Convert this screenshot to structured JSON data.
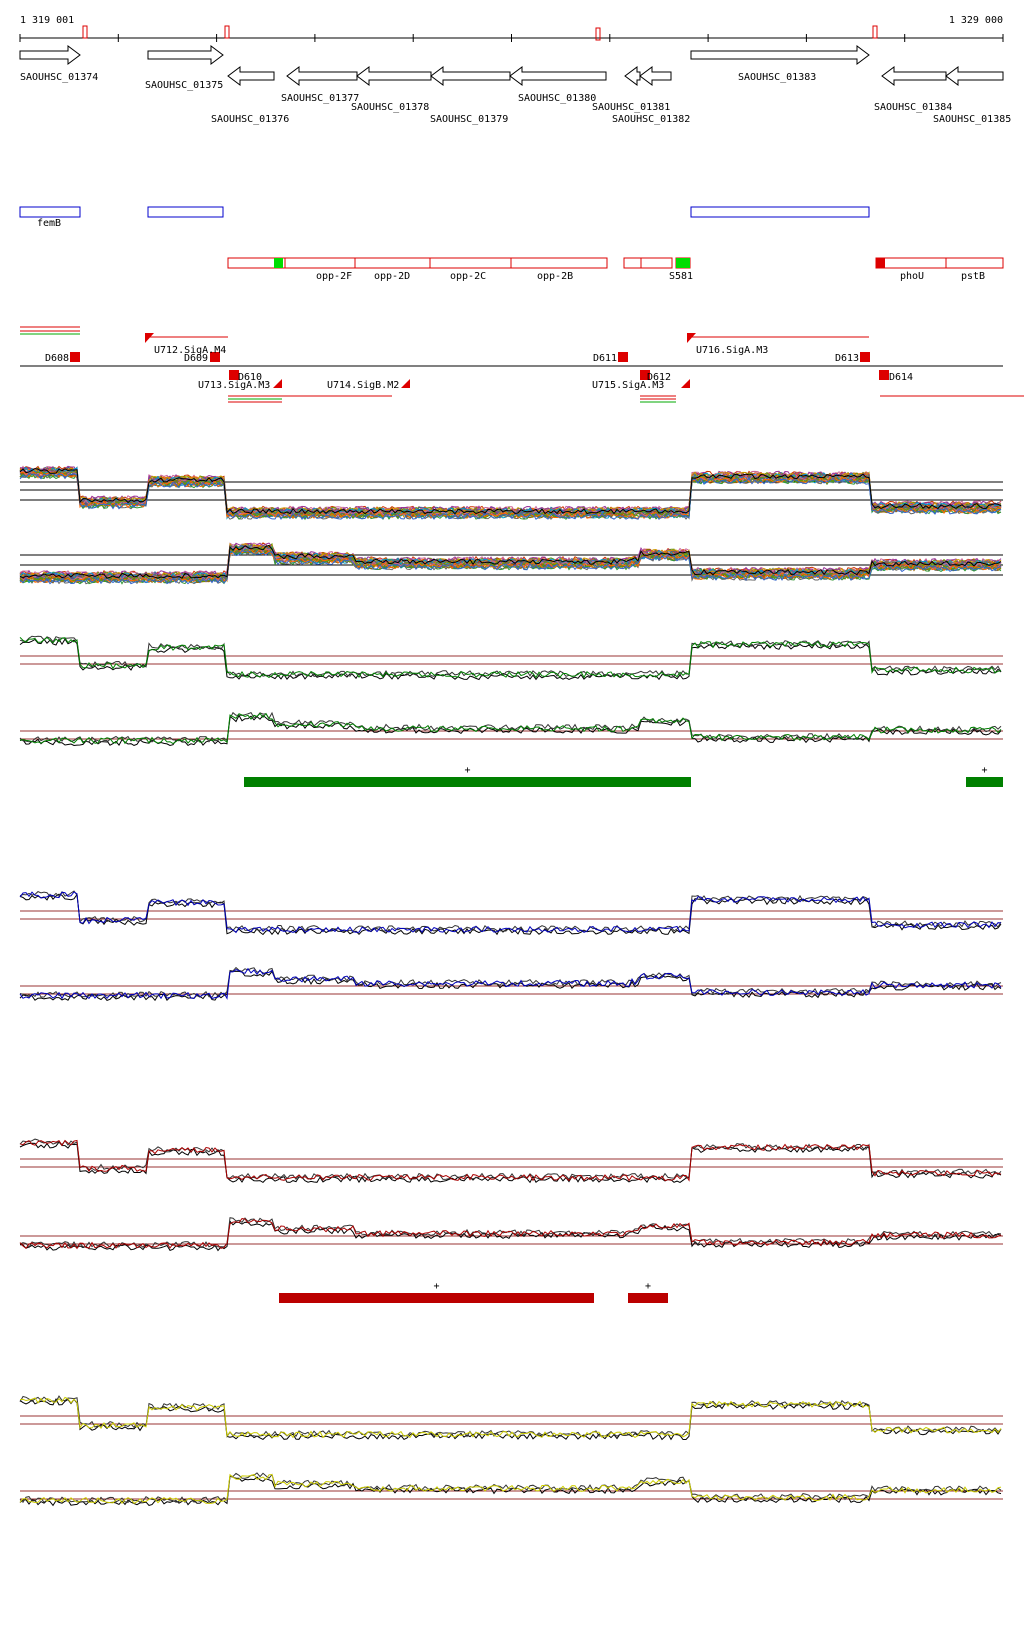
{
  "coords": {
    "start_label": "1 319 001",
    "end_label": "1 329 000"
  },
  "colors": {
    "gene_outline": "#000000",
    "blue_region": "#0000cc",
    "red_region": "#dd0000",
    "green_marker": "#00dd00",
    "signal_green": "#008000",
    "signal_blue": "#0000bb",
    "signal_red": "#aa0000",
    "signal_yellow": "#cccc00",
    "baseline": "#993333"
  },
  "genes": [
    {
      "label": "SAOUHSC_01374",
      "strand": "+"
    },
    {
      "label": "SAOUHSC_01375",
      "strand": "+"
    },
    {
      "label": "SAOUHSC_01376",
      "strand": "-"
    },
    {
      "label": "SAOUHSC_01377",
      "strand": "-"
    },
    {
      "label": "SAOUHSC_01378",
      "strand": "-"
    },
    {
      "label": "SAOUHSC_01379",
      "strand": "-"
    },
    {
      "label": "SAOUHSC_01380",
      "strand": "-"
    },
    {
      "label": "SAOUHSC_01381",
      "strand": "-"
    },
    {
      "label": "SAOUHSC_01382",
      "strand": "-"
    },
    {
      "label": "SAOUHSC_01383",
      "strand": "+"
    },
    {
      "label": "SAOUHSC_01384",
      "strand": "-"
    },
    {
      "label": "SAOUHSC_01385",
      "strand": "-"
    }
  ],
  "blue_regions": [
    {
      "label": "femB"
    },
    {
      "label": ""
    },
    {
      "label": ""
    }
  ],
  "red_regions": [
    {
      "label": ""
    },
    {
      "label": "opp-2F"
    },
    {
      "label": "opp-2D"
    },
    {
      "label": "opp-2C"
    },
    {
      "label": "opp-2B"
    },
    {
      "label": ""
    },
    {
      "label": ""
    },
    {
      "label": "S581"
    },
    {
      "label": "phoU"
    },
    {
      "label": "pstB"
    }
  ],
  "features": [
    {
      "label": "D608"
    },
    {
      "label": "U712.SigA.M4"
    },
    {
      "label": "D609"
    },
    {
      "label": "D610"
    },
    {
      "label": "U713.SigA.M3"
    },
    {
      "label": "U714.SigB.M2"
    },
    {
      "label": "D611"
    },
    {
      "label": "U715.SigA.M3"
    },
    {
      "label": "D612"
    },
    {
      "label": "U716.SigA.M3"
    },
    {
      "label": "D613"
    },
    {
      "label": "D614"
    }
  ],
  "segment_bars": [
    {
      "color": "#008000",
      "mark": "+"
    },
    {
      "color": "#008000",
      "mark": "+"
    },
    {
      "color": "#bb0000",
      "mark": "+"
    },
    {
      "color": "#bb0000",
      "mark": "+"
    }
  ],
  "tracks": [
    {
      "id": "all-conditions-plus",
      "color": "multi"
    },
    {
      "id": "all-conditions-minus",
      "color": "multi"
    },
    {
      "id": "green-plus",
      "color": "#008000"
    },
    {
      "id": "green-minus",
      "color": "#008000"
    },
    {
      "id": "blue-plus",
      "color": "#0000bb"
    },
    {
      "id": "blue-minus",
      "color": "#0000bb"
    },
    {
      "id": "red-plus",
      "color": "#aa0000"
    },
    {
      "id": "red-minus",
      "color": "#aa0000"
    },
    {
      "id": "yellow-plus",
      "color": "#cccc00"
    },
    {
      "id": "yellow-minus",
      "color": "#cccc00"
    }
  ]
}
